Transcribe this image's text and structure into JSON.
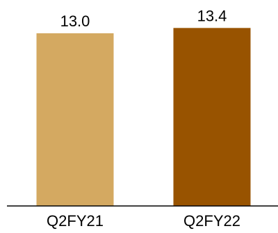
{
  "chart_data": {
    "type": "bar",
    "title": "",
    "xlabel": "",
    "ylabel": "",
    "categories": [
      "Q2FY21",
      "Q2FY22"
    ],
    "values": [
      13.0,
      13.4
    ],
    "value_labels": [
      "13.0",
      "13.4"
    ],
    "colors": [
      "#D4A961",
      "#985300"
    ],
    "ylim": [
      0,
      15
    ],
    "grid": false,
    "legend": "none"
  }
}
